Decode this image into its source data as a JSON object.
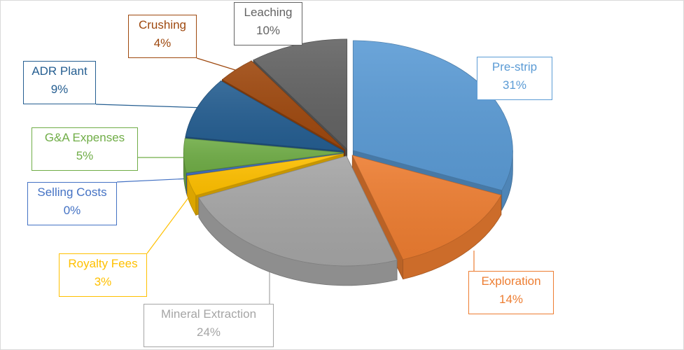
{
  "chart_data": {
    "type": "pie",
    "style": "3d-exploded",
    "title": "",
    "legend": "none",
    "slices": [
      {
        "label": "Pre-strip",
        "value": 31,
        "pct": "31%",
        "color": "#5B9BD5",
        "label_color": "#5B9BD5"
      },
      {
        "label": "Exploration",
        "value": 14,
        "pct": "14%",
        "color": "#ED7D31",
        "label_color": "#ED7D31"
      },
      {
        "label": "Mineral Extraction",
        "value": 24,
        "pct": "24%",
        "color": "#A5A5A5",
        "label_color": "#A5A5A5"
      },
      {
        "label": "Royalty Fees",
        "value": 3,
        "pct": "3%",
        "color": "#FFC000",
        "label_color": "#FFC000"
      },
      {
        "label": "Selling Costs",
        "value": 0.3,
        "pct": "0%",
        "color": "#4472C4",
        "label_color": "#4472C4"
      },
      {
        "label": "G&A Expenses",
        "value": 5,
        "pct": "5%",
        "color": "#70AD47",
        "label_color": "#70AD47"
      },
      {
        "label": "ADR Plant",
        "value": 9,
        "pct": "9%",
        "color": "#255E91",
        "label_color": "#255E91"
      },
      {
        "label": "Crushing",
        "value": 4,
        "pct": "4%",
        "color": "#9E480E",
        "label_color": "#9E480E"
      },
      {
        "label": "Leaching",
        "value": 10,
        "pct": "10%",
        "color": "#636363",
        "label_color": "#636363"
      }
    ]
  }
}
